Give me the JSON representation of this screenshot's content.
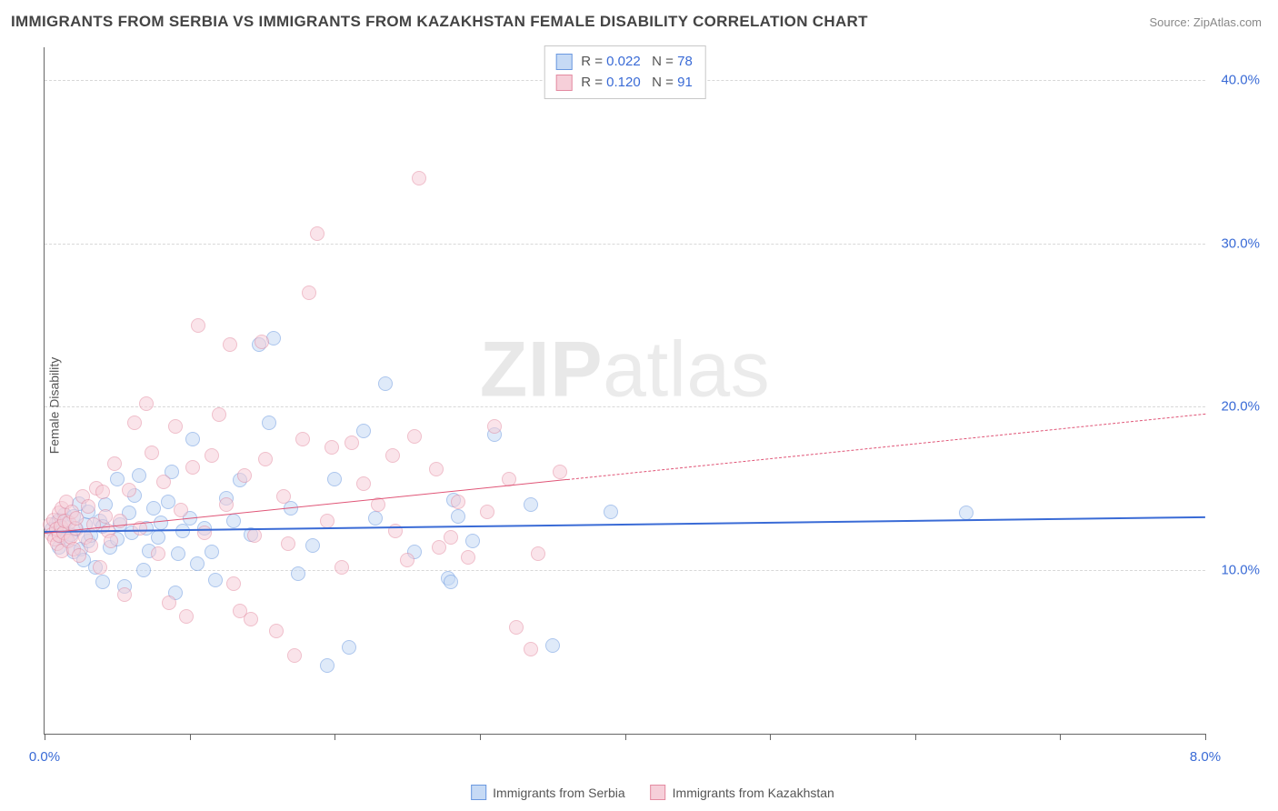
{
  "header": {
    "title": "IMMIGRANTS FROM SERBIA VS IMMIGRANTS FROM KAZAKHSTAN FEMALE DISABILITY CORRELATION CHART",
    "source": "Source: ZipAtlas.com"
  },
  "ylabel": "Female Disability",
  "watermark_a": "ZIP",
  "watermark_b": "atlas",
  "chart": {
    "type": "scatter",
    "xlim": [
      0,
      8.0
    ],
    "ylim": [
      0,
      42.0
    ],
    "background_color": "#ffffff",
    "grid_color": "#d8d8d8",
    "axis_color": "#666666",
    "tick_label_color": "#3a6bd6",
    "tick_fontsize": 15,
    "x_ticks": [
      0.0,
      1.0,
      2.0,
      3.0,
      4.0,
      5.0,
      6.0,
      7.0,
      8.0
    ],
    "x_tick_labels": {
      "0": "0.0%",
      "8": "8.0%"
    },
    "y_gridlines": [
      10.0,
      20.0,
      30.0,
      40.0
    ],
    "y_tick_labels": {
      "10": "10.0%",
      "20": "20.0%",
      "30": "30.0%",
      "40": "40.0%"
    },
    "marker_radius": 8
  },
  "legend": {
    "rows": [
      {
        "swatch_fill": "#c6daf5",
        "swatch_border": "#6a98e0",
        "r_label": "R = ",
        "r_value": "0.022",
        "n_label": "N = ",
        "n_value": "78"
      },
      {
        "swatch_fill": "#f6cfd9",
        "swatch_border": "#e48ba1",
        "r_label": "R = ",
        "r_value": "0.120",
        "n_label": "N = ",
        "n_value": "91"
      }
    ]
  },
  "xlegend": [
    {
      "swatch_fill": "#c6daf5",
      "swatch_border": "#6a98e0",
      "label": "Immigrants from Serbia"
    },
    {
      "swatch_fill": "#f6cfd9",
      "swatch_border": "#e48ba1",
      "label": "Immigrants from Kazakhstan"
    }
  ],
  "series": [
    {
      "name": "Immigrants from Serbia",
      "fill": "#c6daf5",
      "border": "#6a98e0",
      "fill_opacity": 0.55,
      "trend": {
        "y_at_x0": 12.4,
        "y_at_xmax": 13.3,
        "color": "#3a6bd6",
        "width": 2.4,
        "solid_until_x": 8.0
      },
      "points": [
        [
          0.05,
          12.5
        ],
        [
          0.08,
          12.9
        ],
        [
          0.1,
          11.4
        ],
        [
          0.1,
          13.1
        ],
        [
          0.12,
          12.0
        ],
        [
          0.12,
          12.6
        ],
        [
          0.14,
          13.4
        ],
        [
          0.15,
          11.9
        ],
        [
          0.15,
          13.0
        ],
        [
          0.18,
          12.2
        ],
        [
          0.2,
          13.3
        ],
        [
          0.2,
          11.1
        ],
        [
          0.22,
          12.5
        ],
        [
          0.24,
          14.1
        ],
        [
          0.25,
          11.3
        ],
        [
          0.27,
          10.6
        ],
        [
          0.28,
          12.8
        ],
        [
          0.3,
          13.6
        ],
        [
          0.3,
          11.8
        ],
        [
          0.32,
          12.1
        ],
        [
          0.35,
          10.2
        ],
        [
          0.38,
          13.0
        ],
        [
          0.4,
          12.7
        ],
        [
          0.4,
          9.3
        ],
        [
          0.42,
          14.0
        ],
        [
          0.45,
          11.4
        ],
        [
          0.5,
          11.9
        ],
        [
          0.5,
          15.6
        ],
        [
          0.52,
          12.8
        ],
        [
          0.55,
          9.0
        ],
        [
          0.58,
          13.5
        ],
        [
          0.6,
          12.3
        ],
        [
          0.62,
          14.6
        ],
        [
          0.65,
          15.8
        ],
        [
          0.68,
          10.0
        ],
        [
          0.7,
          12.6
        ],
        [
          0.72,
          11.2
        ],
        [
          0.75,
          13.8
        ],
        [
          0.78,
          12.0
        ],
        [
          0.8,
          12.9
        ],
        [
          0.85,
          14.2
        ],
        [
          0.88,
          16.0
        ],
        [
          0.9,
          8.6
        ],
        [
          0.92,
          11.0
        ],
        [
          0.95,
          12.4
        ],
        [
          1.0,
          13.2
        ],
        [
          1.02,
          18.0
        ],
        [
          1.05,
          10.4
        ],
        [
          1.1,
          12.6
        ],
        [
          1.15,
          11.1
        ],
        [
          1.18,
          9.4
        ],
        [
          1.25,
          14.4
        ],
        [
          1.3,
          13.0
        ],
        [
          1.35,
          15.5
        ],
        [
          1.42,
          12.2
        ],
        [
          1.48,
          23.8
        ],
        [
          1.55,
          19.0
        ],
        [
          1.58,
          24.2
        ],
        [
          1.7,
          13.8
        ],
        [
          1.75,
          9.8
        ],
        [
          1.85,
          11.5
        ],
        [
          1.95,
          4.2
        ],
        [
          2.0,
          15.6
        ],
        [
          2.1,
          5.3
        ],
        [
          2.2,
          18.5
        ],
        [
          2.28,
          13.2
        ],
        [
          2.35,
          21.4
        ],
        [
          2.55,
          11.1
        ],
        [
          2.78,
          9.5
        ],
        [
          2.8,
          9.3
        ],
        [
          2.82,
          14.3
        ],
        [
          2.85,
          13.3
        ],
        [
          2.95,
          11.8
        ],
        [
          3.1,
          18.3
        ],
        [
          3.35,
          14.0
        ],
        [
          3.5,
          5.4
        ],
        [
          3.9,
          13.6
        ],
        [
          6.35,
          13.5
        ]
      ]
    },
    {
      "name": "Immigrants from Kazakhstan",
      "fill": "#f6cfd9",
      "border": "#e48ba1",
      "fill_opacity": 0.55,
      "trend": {
        "y_at_x0": 12.3,
        "y_at_xmax": 19.6,
        "color": "#e05577",
        "width": 1.8,
        "solid_until_x": 3.6
      },
      "points": [
        [
          0.04,
          12.8
        ],
        [
          0.05,
          12.2
        ],
        [
          0.06,
          13.1
        ],
        [
          0.07,
          11.9
        ],
        [
          0.08,
          12.5
        ],
        [
          0.09,
          11.6
        ],
        [
          0.1,
          13.5
        ],
        [
          0.1,
          12.1
        ],
        [
          0.11,
          12.7
        ],
        [
          0.12,
          13.8
        ],
        [
          0.12,
          11.2
        ],
        [
          0.13,
          12.3
        ],
        [
          0.14,
          13.0
        ],
        [
          0.15,
          14.2
        ],
        [
          0.16,
          11.8
        ],
        [
          0.17,
          12.9
        ],
        [
          0.18,
          12.0
        ],
        [
          0.19,
          13.6
        ],
        [
          0.2,
          11.3
        ],
        [
          0.21,
          12.6
        ],
        [
          0.22,
          13.2
        ],
        [
          0.24,
          10.9
        ],
        [
          0.26,
          14.5
        ],
        [
          0.28,
          12.0
        ],
        [
          0.3,
          13.9
        ],
        [
          0.32,
          11.5
        ],
        [
          0.34,
          12.8
        ],
        [
          0.36,
          15.0
        ],
        [
          0.38,
          10.2
        ],
        [
          0.4,
          14.8
        ],
        [
          0.42,
          13.3
        ],
        [
          0.44,
          12.4
        ],
        [
          0.46,
          11.8
        ],
        [
          0.48,
          16.5
        ],
        [
          0.52,
          13.0
        ],
        [
          0.55,
          8.5
        ],
        [
          0.58,
          14.9
        ],
        [
          0.62,
          19.0
        ],
        [
          0.66,
          12.6
        ],
        [
          0.7,
          20.2
        ],
        [
          0.74,
          17.2
        ],
        [
          0.78,
          11.0
        ],
        [
          0.82,
          15.4
        ],
        [
          0.86,
          8.0
        ],
        [
          0.9,
          18.8
        ],
        [
          0.94,
          13.7
        ],
        [
          0.98,
          7.2
        ],
        [
          1.02,
          16.3
        ],
        [
          1.06,
          25.0
        ],
        [
          1.1,
          12.3
        ],
        [
          1.15,
          17.0
        ],
        [
          1.2,
          19.5
        ],
        [
          1.25,
          14.0
        ],
        [
          1.28,
          23.8
        ],
        [
          1.3,
          9.2
        ],
        [
          1.35,
          7.5
        ],
        [
          1.38,
          15.8
        ],
        [
          1.42,
          7.0
        ],
        [
          1.45,
          12.1
        ],
        [
          1.5,
          24.0
        ],
        [
          1.52,
          16.8
        ],
        [
          1.6,
          6.3
        ],
        [
          1.65,
          14.5
        ],
        [
          1.68,
          11.6
        ],
        [
          1.72,
          4.8
        ],
        [
          1.78,
          18.0
        ],
        [
          1.82,
          27.0
        ],
        [
          1.88,
          30.6
        ],
        [
          1.95,
          13.0
        ],
        [
          1.98,
          17.5
        ],
        [
          2.05,
          10.2
        ],
        [
          2.12,
          17.8
        ],
        [
          2.2,
          15.3
        ],
        [
          2.3,
          14.0
        ],
        [
          2.4,
          17.0
        ],
        [
          2.42,
          12.4
        ],
        [
          2.5,
          10.6
        ],
        [
          2.55,
          18.2
        ],
        [
          2.58,
          34.0
        ],
        [
          2.7,
          16.2
        ],
        [
          2.72,
          11.4
        ],
        [
          2.8,
          12.0
        ],
        [
          2.85,
          14.2
        ],
        [
          2.92,
          10.8
        ],
        [
          3.05,
          13.6
        ],
        [
          3.1,
          18.8
        ],
        [
          3.2,
          15.6
        ],
        [
          3.25,
          6.5
        ],
        [
          3.35,
          5.2
        ],
        [
          3.4,
          11.0
        ],
        [
          3.55,
          16.0
        ]
      ]
    }
  ]
}
